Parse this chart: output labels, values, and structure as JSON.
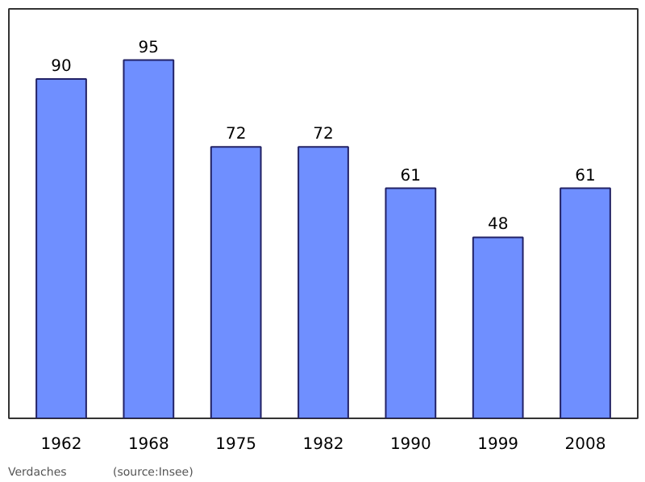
{
  "chart_data": {
    "type": "bar",
    "categories": [
      "1962",
      "1968",
      "1975",
      "1982",
      "1990",
      "1999",
      "2008"
    ],
    "values": [
      90,
      95,
      72,
      72,
      61,
      48,
      61
    ],
    "color": "#6f8fff",
    "data_labels": true,
    "grid": false,
    "annotations": [
      "Verdaches",
      "(source:Insee)"
    ]
  }
}
